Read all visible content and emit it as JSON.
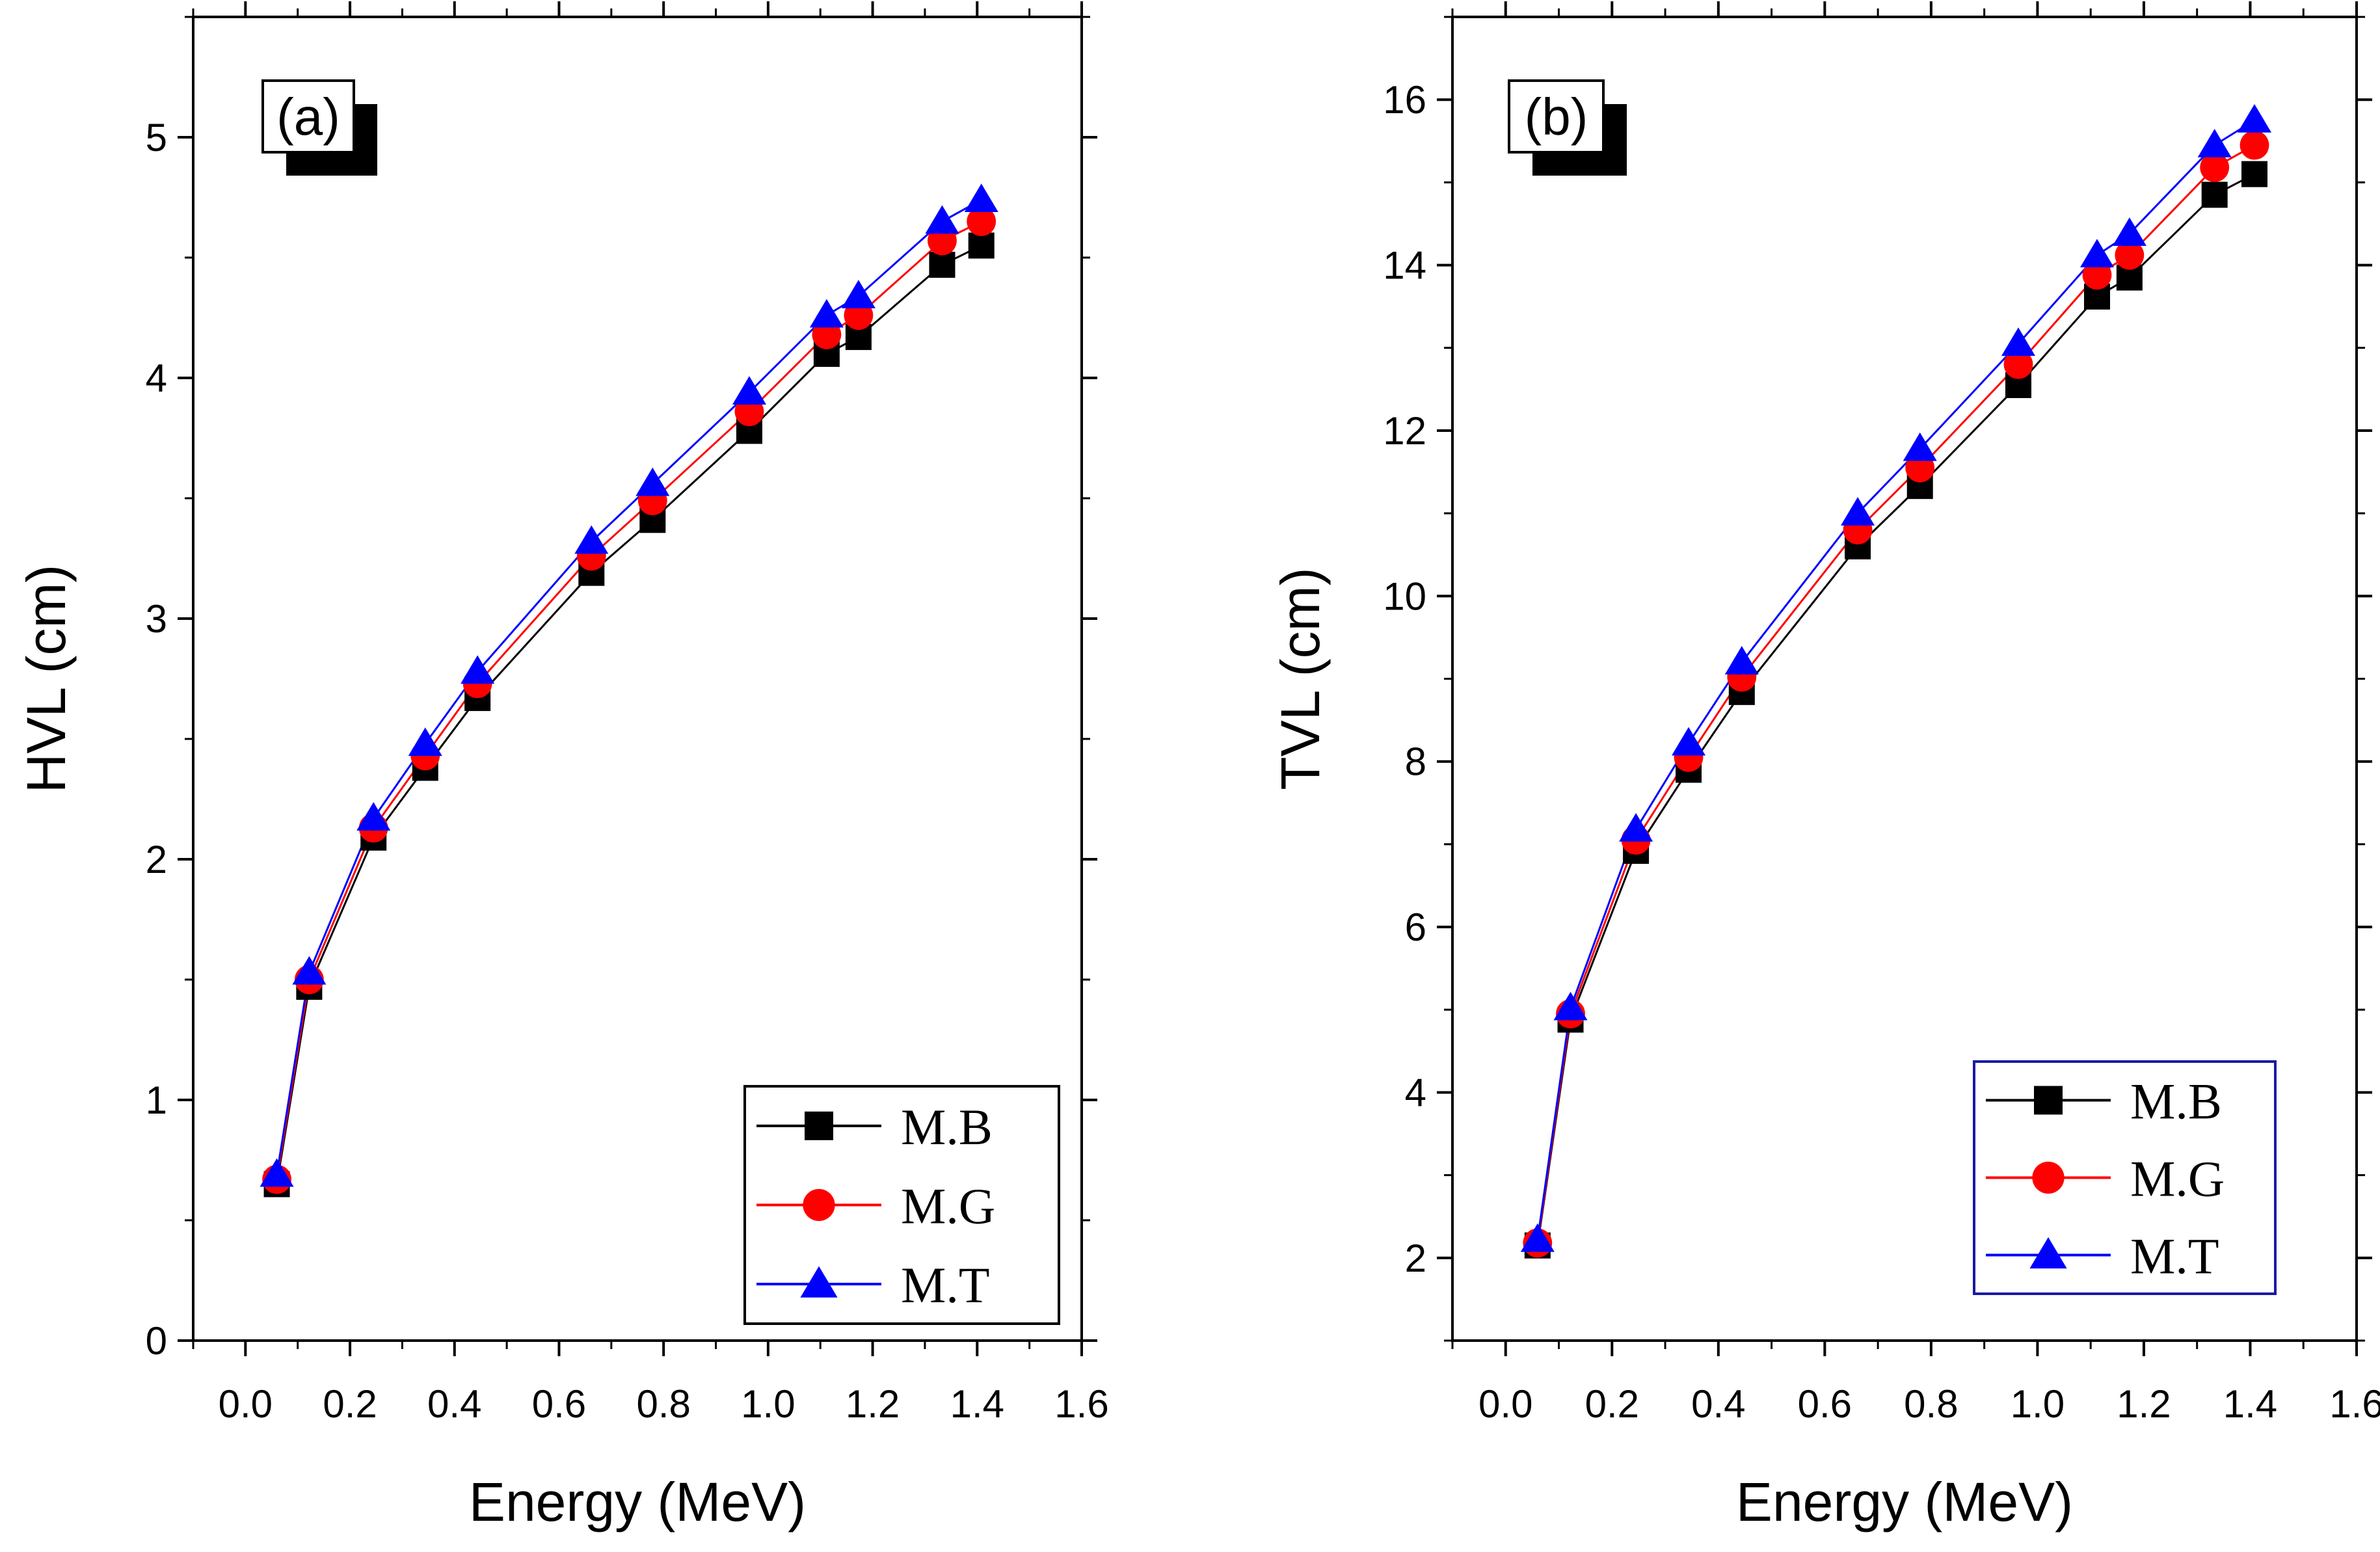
{
  "chart_data": [
    {
      "type": "line",
      "panel_label": "(a)",
      "xlabel": "Energy (MeV)",
      "ylabel": "HVL (cm)",
      "xlim": [
        -0.1,
        1.6
      ],
      "ylim": [
        0,
        5.5
      ],
      "x_ticks": [
        "0.0",
        "0.2",
        "0.4",
        "0.6",
        "0.8",
        "1.0",
        "1.2",
        "1.4",
        "1.6"
      ],
      "y_ticks": [
        "0",
        "1",
        "2",
        "3",
        "4",
        "5"
      ],
      "legend_position": "bottom-right",
      "x": [
        0.06,
        0.122,
        0.245,
        0.344,
        0.444,
        0.662,
        0.779,
        0.964,
        1.112,
        1.173,
        1.333,
        1.408
      ],
      "series": [
        {
          "name": "M.B",
          "color": "#000000",
          "marker": "square",
          "values": [
            0.65,
            1.47,
            2.09,
            2.38,
            2.67,
            3.19,
            3.41,
            3.78,
            4.1,
            4.17,
            4.47,
            4.55
          ]
        },
        {
          "name": "M.G",
          "color": "#ff0000",
          "marker": "circle",
          "values": [
            0.67,
            1.5,
            2.13,
            2.43,
            2.73,
            3.26,
            3.49,
            3.86,
            4.18,
            4.26,
            4.57,
            4.65
          ]
        },
        {
          "name": "M.T",
          "color": "#0000ff",
          "marker": "triangle",
          "values": [
            0.69,
            1.53,
            2.17,
            2.48,
            2.78,
            3.32,
            3.56,
            3.94,
            4.26,
            4.34,
            4.65,
            4.74
          ]
        }
      ]
    },
    {
      "type": "line",
      "panel_label": "(b)",
      "xlabel": "Energy (MeV)",
      "ylabel": "TVL (cm)",
      "xlim": [
        -0.1,
        1.6
      ],
      "ylim": [
        1,
        17
      ],
      "x_ticks": [
        "0.0",
        "0.2",
        "0.4",
        "0.6",
        "0.8",
        "1.0",
        "1.2",
        "1.4",
        "1.6"
      ],
      "y_ticks": [
        "2",
        "4",
        "6",
        "8",
        "10",
        "12",
        "14",
        "16"
      ],
      "legend_position": "bottom-right",
      "x": [
        0.06,
        0.122,
        0.245,
        0.344,
        0.444,
        0.662,
        0.779,
        0.964,
        1.112,
        1.173,
        1.333,
        1.408
      ],
      "series": [
        {
          "name": "M.B",
          "color": "#000000",
          "marker": "square",
          "values": [
            2.15,
            4.88,
            6.92,
            7.9,
            8.84,
            10.6,
            11.33,
            12.55,
            13.62,
            13.85,
            14.85,
            15.1
          ]
        },
        {
          "name": "M.G",
          "color": "#ff0000",
          "marker": "circle",
          "values": [
            2.18,
            4.95,
            7.05,
            8.05,
            9.02,
            10.8,
            11.55,
            12.8,
            13.88,
            14.12,
            15.18,
            15.45
          ]
        },
        {
          "name": "M.T",
          "color": "#0000ff",
          "marker": "triangle",
          "values": [
            2.22,
            5.02,
            7.18,
            8.22,
            9.2,
            11.0,
            11.78,
            13.05,
            14.12,
            14.38,
            15.45,
            15.75
          ]
        }
      ]
    }
  ]
}
